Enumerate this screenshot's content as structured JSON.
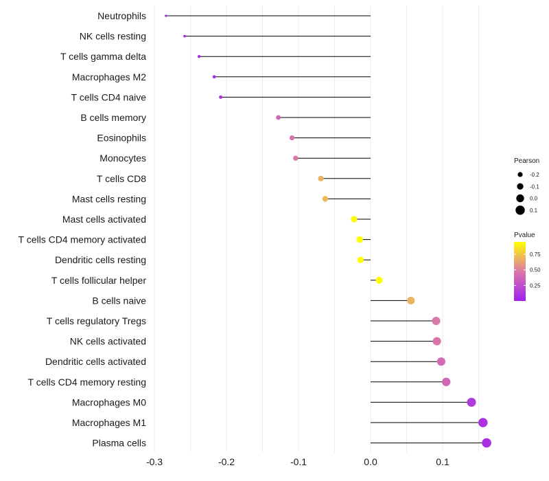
{
  "chart_data": {
    "type": "lollipop",
    "xlim": [
      -0.3,
      0.17
    ],
    "x_ticks": [
      -0.3,
      -0.2,
      -0.1,
      0.0,
      0.1
    ],
    "x_tick_labels": [
      "-0.3",
      "-0.2",
      "-0.1",
      "0.0",
      "0.1"
    ],
    "xlabel": "",
    "ylabel": "",
    "categories": [
      "Neutrophils",
      "NK cells resting",
      "T cells gamma delta",
      "Macrophages M2",
      "T cells CD4 naive",
      "B cells memory",
      "Eosinophils",
      "Monocytes",
      "T cells CD8",
      "Mast cells resting",
      "Mast cells activated",
      "T cells CD4 memory activated",
      "Dendritic cells resting",
      "T cells follicular helper",
      "B cells naive",
      "T cells regulatory  Tregs ",
      "NK cells activated",
      "Dendritic cells activated",
      "T cells CD4 memory resting",
      "Macrophages M0",
      "Macrophages M1",
      "Plasma cells"
    ],
    "values": [
      -0.284,
      -0.258,
      -0.238,
      -0.217,
      -0.208,
      -0.128,
      -0.109,
      -0.104,
      -0.069,
      -0.063,
      -0.023,
      -0.015,
      -0.014,
      0.012,
      0.056,
      0.091,
      0.092,
      0.098,
      0.105,
      0.14,
      0.156,
      0.161
    ],
    "pvalues": [
      0.0,
      0.02,
      0.04,
      0.08,
      0.1,
      0.38,
      0.45,
      0.47,
      0.68,
      0.7,
      0.93,
      0.95,
      0.95,
      0.95,
      0.68,
      0.47,
      0.45,
      0.4,
      0.38,
      0.14,
      0.1,
      0.08
    ],
    "size_legend": {
      "title": "Pearson",
      "entries": [
        {
          "label": "-0.2",
          "value": -0.2
        },
        {
          "label": "-0.1",
          "value": -0.1
        },
        {
          "label": "0.0",
          "value": 0.0
        },
        {
          "label": "0.1",
          "value": 0.1
        }
      ]
    },
    "color_legend": {
      "title": "Pvalue",
      "range": [
        0.0,
        0.95
      ],
      "ticks": [
        {
          "label": "0.75",
          "value": 0.75
        },
        {
          "label": "0.50",
          "value": 0.5
        },
        {
          "label": "0.25",
          "value": 0.25
        }
      ],
      "low_color": "#a020f0",
      "mid_color": "#dc78a8",
      "high_color": "#ffff00"
    },
    "stem_color": "#000000",
    "grid_color": "#ebebeb"
  }
}
